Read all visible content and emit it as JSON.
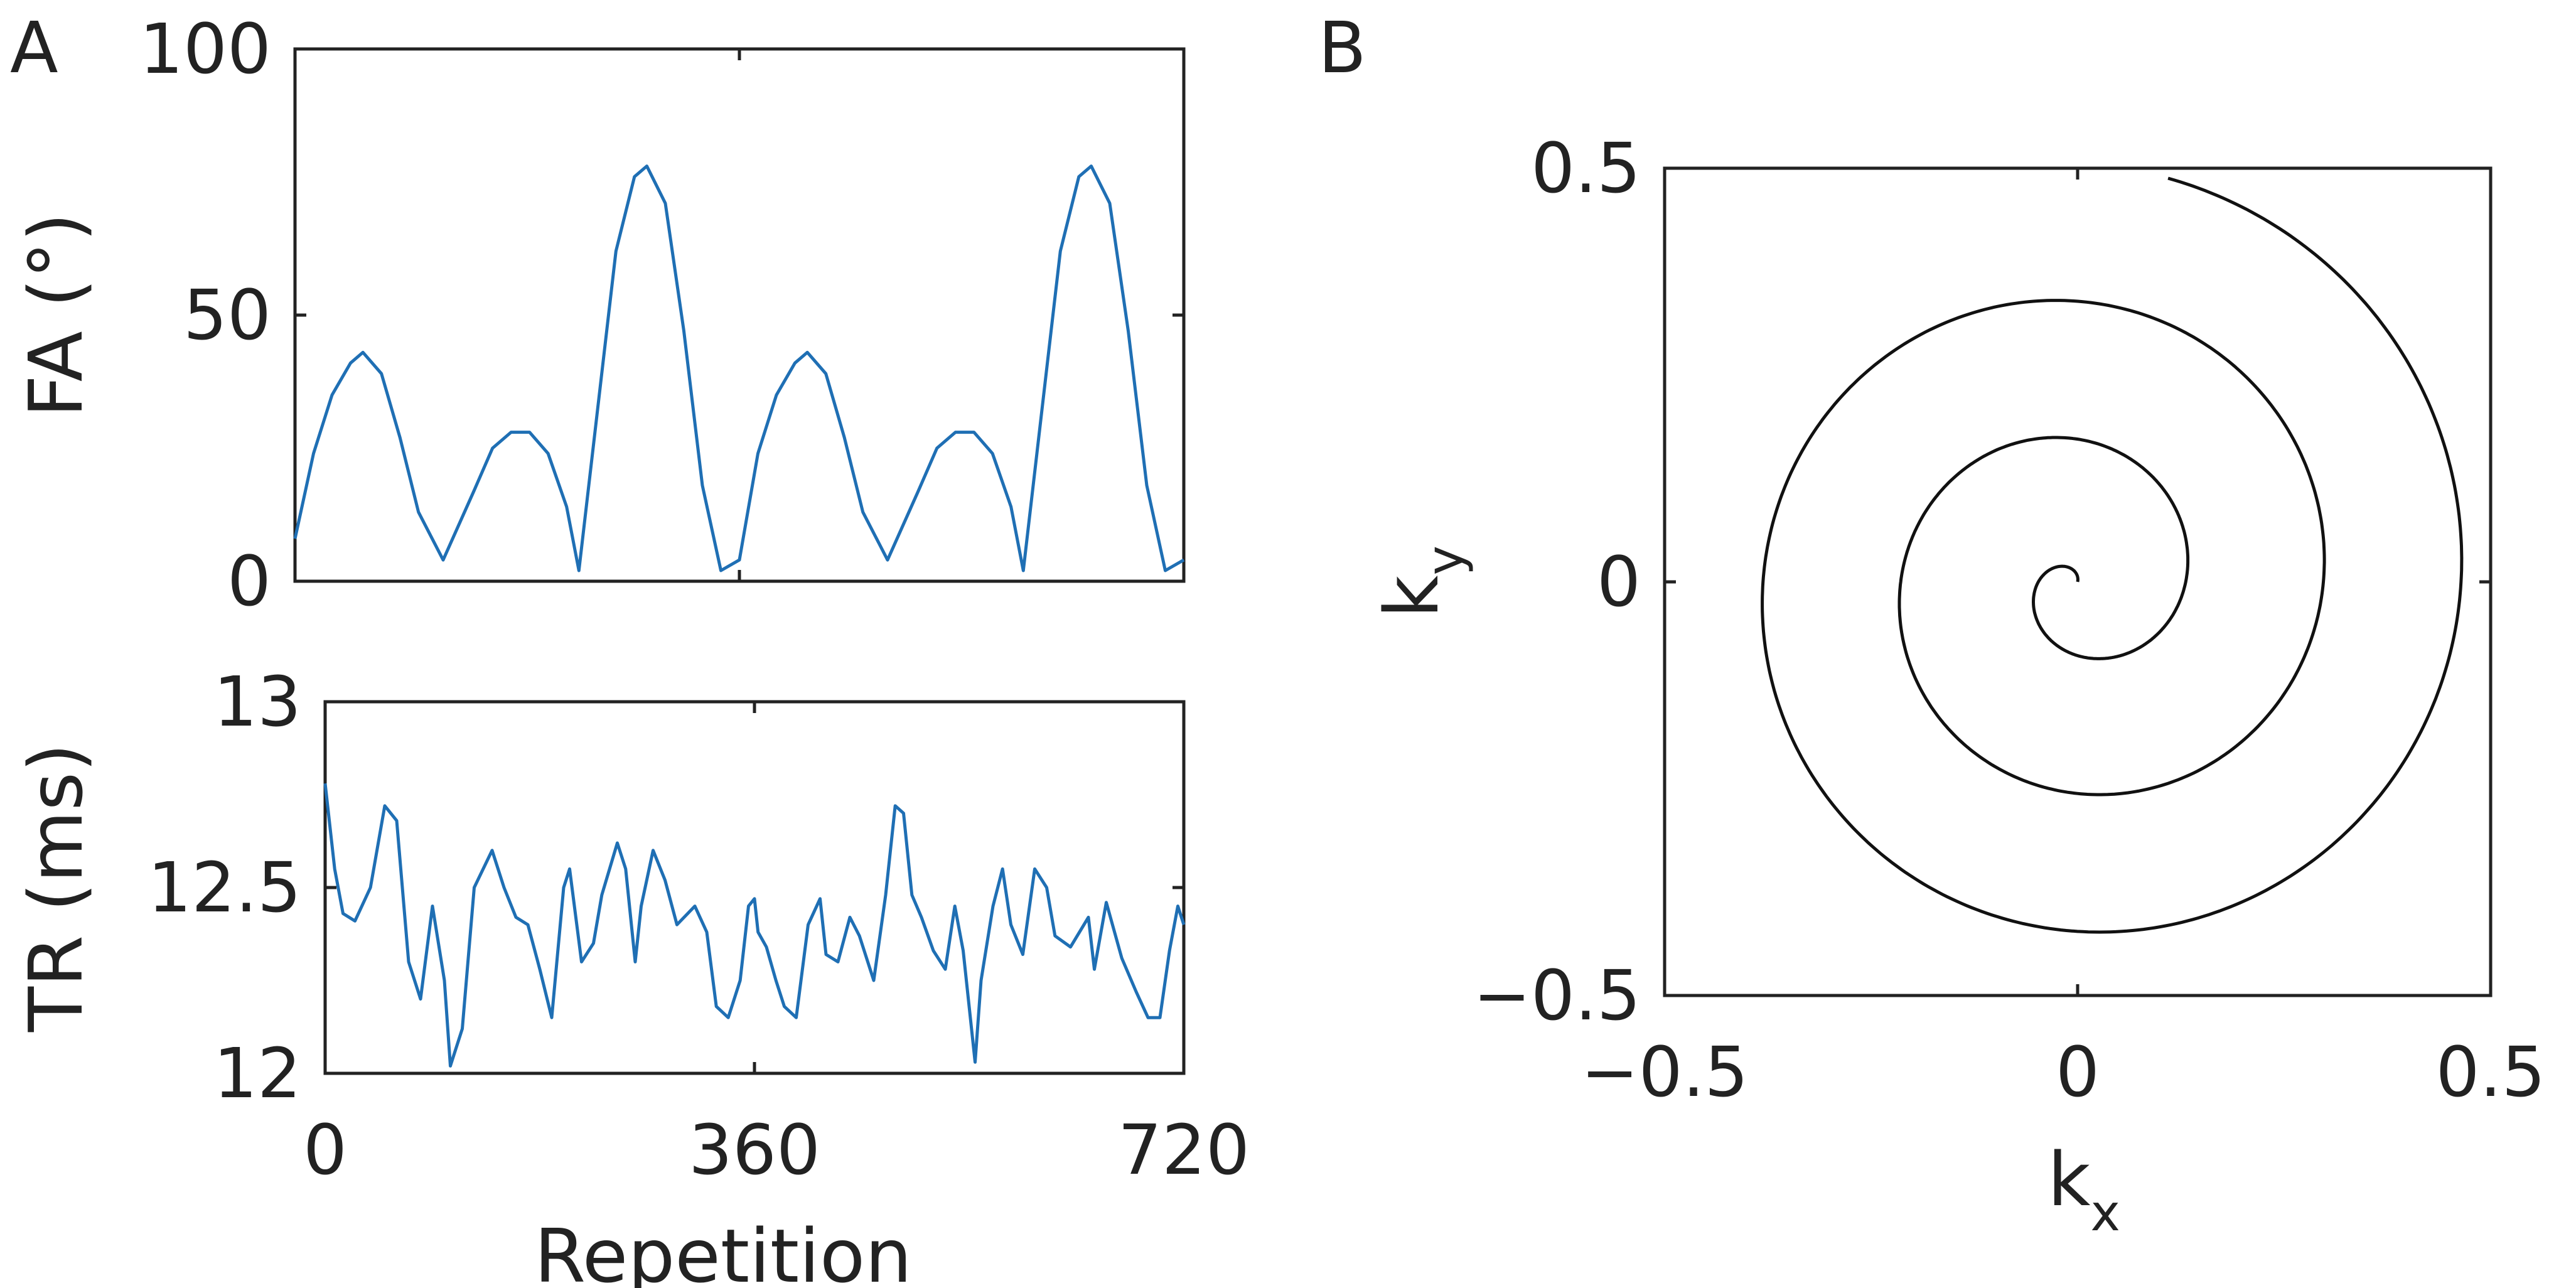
{
  "panels": {
    "a": {
      "letter": "A"
    },
    "b": {
      "letter": "B"
    }
  },
  "colors": {
    "series": "#1f6fb4",
    "spiral": "#111111",
    "axes": "#222222"
  },
  "chart_data": [
    {
      "id": "fa",
      "panel": "A",
      "type": "line",
      "title": "",
      "xlabel": "",
      "ylabel": "FA (°)",
      "xlim": [
        0,
        720
      ],
      "ylim": [
        0,
        100
      ],
      "xticks": [
        0,
        360,
        720
      ],
      "yticks": [
        0,
        50,
        100
      ],
      "ytick_labels": [
        "0",
        "50",
        "100"
      ],
      "grid": false,
      "series": [
        {
          "name": "FA",
          "x": [
            0,
            15,
            30,
            45,
            55,
            70,
            85,
            100,
            120,
            145,
            160,
            175,
            190,
            205,
            220,
            230,
            245,
            260,
            275,
            285,
            300,
            315,
            330,
            345,
            360,
            375,
            390,
            405,
            415,
            430,
            445,
            460,
            480,
            505,
            520,
            535,
            550,
            565,
            580,
            590,
            605,
            620,
            635,
            645,
            660,
            675,
            690,
            705,
            720
          ],
          "y": [
            8,
            24,
            35,
            41,
            43,
            39,
            27,
            13,
            4,
            17,
            25,
            28,
            28,
            24,
            14,
            2,
            32,
            62,
            76,
            78,
            71,
            47,
            18,
            2,
            4,
            24,
            35,
            41,
            43,
            39,
            27,
            13,
            4,
            17,
            25,
            28,
            28,
            24,
            14,
            2,
            32,
            62,
            76,
            78,
            71,
            47,
            18,
            2,
            4
          ]
        }
      ]
    },
    {
      "id": "tr",
      "panel": "A",
      "type": "line",
      "title": "",
      "xlabel": "Repetition",
      "ylabel": "TR (ms)",
      "xlim": [
        0,
        720
      ],
      "ylim": [
        12,
        13
      ],
      "xticks": [
        0,
        360,
        720
      ],
      "xtick_labels": [
        "0",
        "360",
        "720"
      ],
      "yticks": [
        12,
        12.5,
        13
      ],
      "ytick_labels": [
        "12",
        "12.5",
        "13"
      ],
      "grid": false,
      "series": [
        {
          "name": "TR",
          "x": [
            0,
            8,
            15,
            25,
            38,
            50,
            60,
            70,
            80,
            90,
            100,
            105,
            115,
            125,
            140,
            150,
            160,
            170,
            180,
            190,
            200,
            205,
            215,
            225,
            232,
            245,
            252,
            260,
            265,
            275,
            285,
            295,
            310,
            320,
            328,
            338,
            348,
            355,
            360,
            363,
            370,
            378,
            385,
            395,
            405,
            415,
            420,
            430,
            440,
            448,
            460,
            470,
            478,
            485,
            492,
            500,
            510,
            520,
            528,
            535,
            545,
            550,
            560,
            568,
            575,
            585,
            595,
            605,
            612,
            625,
            640,
            645,
            655,
            668,
            680,
            690,
            700,
            708,
            715,
            720
          ],
          "y": [
            12.78,
            12.55,
            12.43,
            12.41,
            12.5,
            12.72,
            12.68,
            12.3,
            12.2,
            12.45,
            12.25,
            12.02,
            12.12,
            12.5,
            12.6,
            12.5,
            12.42,
            12.4,
            12.28,
            12.15,
            12.5,
            12.55,
            12.3,
            12.35,
            12.48,
            12.62,
            12.55,
            12.3,
            12.45,
            12.6,
            12.52,
            12.4,
            12.45,
            12.38,
            12.18,
            12.15,
            12.25,
            12.45,
            12.47,
            12.38,
            12.34,
            12.25,
            12.18,
            12.15,
            12.4,
            12.47,
            12.32,
            12.3,
            12.42,
            12.37,
            12.25,
            12.48,
            12.72,
            12.7,
            12.48,
            12.42,
            12.33,
            12.28,
            12.45,
            12.33,
            12.03,
            12.25,
            12.45,
            12.55,
            12.4,
            12.32,
            12.55,
            12.5,
            12.37,
            12.34,
            12.42,
            12.28,
            12.46,
            12.31,
            12.22,
            12.15,
            12.15,
            12.33,
            12.45,
            12.4
          ]
        }
      ]
    },
    {
      "id": "kspace",
      "panel": "B",
      "type": "line",
      "title": "",
      "xlabel": "kx",
      "ylabel": "ky",
      "xlim": [
        -0.5,
        0.5
      ],
      "ylim": [
        -0.5,
        0.5
      ],
      "xticks": [
        -0.5,
        0,
        0.5
      ],
      "xtick_labels": [
        "−0.5",
        "0",
        "0.5"
      ],
      "yticks": [
        -0.5,
        0,
        0.5
      ],
      "ytick_labels": [
        "−0.5",
        "0",
        "0.5"
      ],
      "grid": false,
      "aspect": "equal",
      "trajectory": "archimedean spiral",
      "k_max": 0.5,
      "turns": 3
    }
  ]
}
